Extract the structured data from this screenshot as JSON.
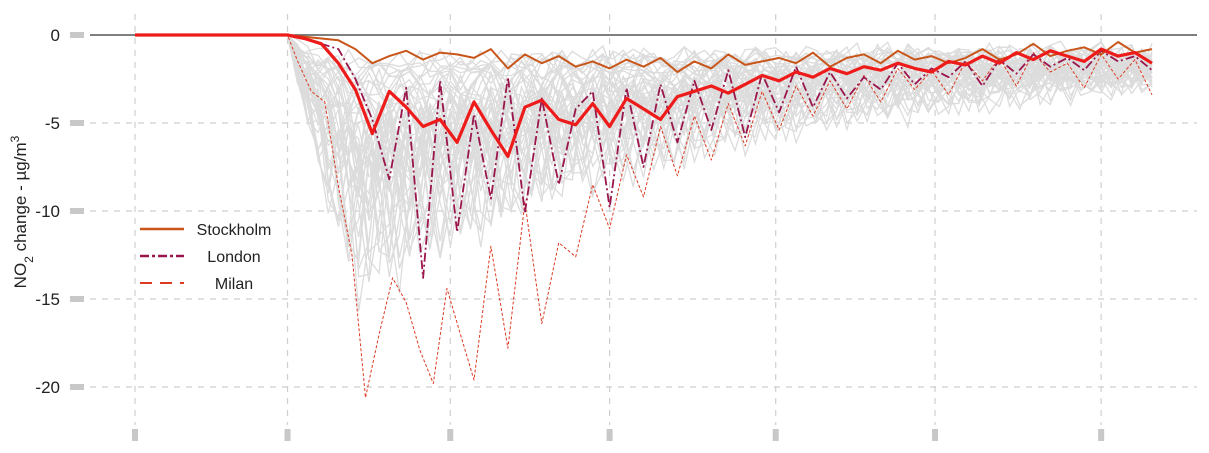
{
  "chart_data": {
    "type": "line",
    "ylabel": "NO2 change - µg/m3",
    "ylabel_parts": {
      "a": "NO",
      "sub": "2",
      "b": " change - µg/m",
      "sup": "3"
    },
    "ylim": [
      -22,
      1.3
    ],
    "yticks": [
      "0",
      "-5",
      "-10",
      "-15",
      "-20"
    ],
    "ytick_values": [
      0,
      -5,
      -10,
      -15,
      -20
    ],
    "x_index_range": [
      0,
      300
    ],
    "x_gridlines": [
      0,
      45,
      93,
      140,
      189,
      236,
      285
    ],
    "grid": true,
    "reference_line": 0,
    "legend": {
      "position": "middle-left",
      "entries": [
        {
          "label": "Stockholm",
          "color": "#c8561a",
          "style": "solid"
        },
        {
          "label": "London",
          "color": "#99154b",
          "style": "dashdot"
        },
        {
          "label": "Milan",
          "color": "#dd3a22",
          "style": "dashed"
        }
      ]
    },
    "series": [
      {
        "name": "Stockholm",
        "color": "#c8561a",
        "style": "solid",
        "x": [
          0,
          45,
          50,
          55,
          60,
          65,
          70,
          75,
          80,
          85,
          90,
          95,
          100,
          105,
          110,
          115,
          120,
          125,
          130,
          135,
          140,
          145,
          150,
          155,
          160,
          165,
          170,
          175,
          180,
          185,
          190,
          195,
          200,
          205,
          210,
          215,
          220,
          225,
          230,
          235,
          240,
          245,
          250,
          255,
          260,
          265,
          270,
          275,
          280,
          285,
          290,
          295,
          300
        ],
        "values": [
          0,
          0,
          -0.1,
          -0.2,
          -0.3,
          -0.8,
          -1.6,
          -1.2,
          -0.9,
          -1.4,
          -1.0,
          -1.1,
          -1.3,
          -0.8,
          -1.9,
          -1.1,
          -1.6,
          -1.2,
          -1.8,
          -1.5,
          -1.9,
          -1.4,
          -1.8,
          -1.3,
          -2.1,
          -1.5,
          -1.9,
          -1.1,
          -1.7,
          -1.5,
          -1.3,
          -1.6,
          -1.0,
          -1.8,
          -1.3,
          -1.1,
          -1.6,
          -0.9,
          -1.4,
          -1.2,
          -1.6,
          -1.3,
          -0.8,
          -1.4,
          -1.1,
          -0.5,
          -1.2,
          -0.9,
          -0.7,
          -1.1,
          -0.4,
          -1.0,
          -0.8
        ]
      },
      {
        "name": "",
        "color": "#ee1b1b",
        "style": "solid-bold",
        "x": [
          0,
          45,
          50,
          55,
          60,
          65,
          70,
          75,
          80,
          85,
          90,
          95,
          100,
          105,
          110,
          115,
          120,
          125,
          130,
          135,
          140,
          145,
          150,
          155,
          160,
          165,
          170,
          175,
          180,
          185,
          190,
          195,
          200,
          205,
          210,
          215,
          220,
          225,
          230,
          235,
          240,
          245,
          250,
          255,
          260,
          265,
          270,
          275,
          280,
          285,
          290,
          295,
          300
        ],
        "values": [
          0,
          0,
          -0.2,
          -0.5,
          -1.6,
          -3.1,
          -5.6,
          -3.2,
          -4.1,
          -5.2,
          -4.8,
          -6.1,
          -3.8,
          -5.4,
          -6.9,
          -4.1,
          -3.7,
          -4.8,
          -5.1,
          -3.9,
          -5.2,
          -3.6,
          -4.2,
          -4.8,
          -3.5,
          -3.2,
          -2.9,
          -3.3,
          -2.8,
          -2.3,
          -2.6,
          -2.1,
          -2.4,
          -1.9,
          -2.2,
          -1.8,
          -2.0,
          -1.6,
          -1.9,
          -2.1,
          -1.5,
          -1.7,
          -1.2,
          -1.6,
          -1.0,
          -1.4,
          -0.9,
          -1.2,
          -1.5,
          -0.8,
          -1.2,
          -1.0,
          -1.6
        ]
      },
      {
        "name": "London",
        "color": "#99154b",
        "style": "dashdot",
        "x": [
          0,
          45,
          50,
          55,
          60,
          65,
          70,
          75,
          80,
          85,
          90,
          95,
          100,
          105,
          110,
          115,
          120,
          125,
          130,
          135,
          140,
          145,
          150,
          155,
          160,
          165,
          170,
          175,
          180,
          185,
          190,
          195,
          200,
          205,
          210,
          215,
          220,
          225,
          230,
          235,
          240,
          245,
          250,
          255,
          260,
          265,
          270,
          275,
          280,
          285,
          290,
          295,
          300
        ],
        "values": [
          0,
          0,
          -0.2,
          -0.5,
          -0.8,
          -2.5,
          -4.8,
          -8.2,
          -3.0,
          -13.8,
          -2.6,
          -11.2,
          -4.5,
          -9.3,
          -2.4,
          -10.1,
          -3.6,
          -8.5,
          -4.2,
          -3.2,
          -9.8,
          -3.0,
          -7.5,
          -2.8,
          -6.1,
          -2.6,
          -5.4,
          -2.0,
          -5.8,
          -2.2,
          -4.4,
          -1.8,
          -4.1,
          -2.1,
          -3.6,
          -2.4,
          -3.1,
          -1.6,
          -2.8,
          -1.9,
          -2.4,
          -1.5,
          -2.9,
          -1.4,
          -2.2,
          -1.1,
          -1.8,
          -1.3,
          -2.0,
          -0.9,
          -1.5,
          -1.2,
          -2.0
        ]
      },
      {
        "name": "Milan",
        "color": "#dd3a22",
        "style": "dashed",
        "x": [
          0,
          45,
          48,
          52,
          56,
          60,
          64,
          68,
          72,
          76,
          80,
          84,
          88,
          92,
          96,
          100,
          105,
          110,
          115,
          120,
          125,
          130,
          135,
          140,
          145,
          150,
          155,
          160,
          165,
          170,
          175,
          180,
          185,
          190,
          195,
          200,
          205,
          210,
          215,
          220,
          225,
          230,
          235,
          240,
          245,
          250,
          255,
          260,
          265,
          270,
          275,
          280,
          285,
          290,
          295,
          300
        ],
        "values": [
          0,
          0,
          -1.5,
          -3.2,
          -3.8,
          -8.6,
          -12.5,
          -20.6,
          -17.0,
          -13.8,
          -15.2,
          -17.9,
          -19.8,
          -14.4,
          -17.0,
          -19.6,
          -12.0,
          -17.8,
          -9.5,
          -16.4,
          -11.8,
          -12.6,
          -8.5,
          -11.0,
          -6.8,
          -9.2,
          -5.2,
          -8.0,
          -4.6,
          -7.1,
          -3.9,
          -6.3,
          -3.2,
          -5.4,
          -2.9,
          -4.6,
          -2.6,
          -4.2,
          -2.3,
          -3.8,
          -1.9,
          -3.1,
          -2.0,
          -3.4,
          -1.5,
          -2.6,
          -1.3,
          -2.9,
          -1.0,
          -2.1,
          -1.6,
          -3.0,
          -1.1,
          -2.5,
          -1.4,
          -3.4
        ]
      }
    ]
  }
}
